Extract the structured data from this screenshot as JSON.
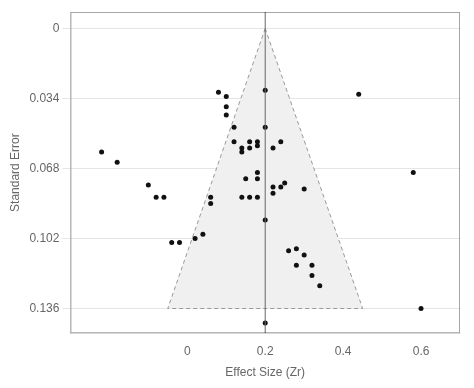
{
  "chart_data": {
    "type": "scatter",
    "xlabel": "Effect Size (Zr)",
    "ylabel": "Standard Error",
    "xlim": [
      -0.3,
      0.7
    ],
    "ylim": [
      0.148,
      -0.008
    ],
    "xticks": [
      0,
      0.2,
      0.4,
      0.6
    ],
    "yticks": [
      0,
      0.034,
      0.068,
      0.102,
      0.136
    ],
    "grid": true,
    "series": [
      {
        "type": "area",
        "color": "#f0f0f0",
        "x": [
          0.2,
          -0.05024,
          0.45024
        ],
        "values": [
          0,
          0.136,
          0.136
        ]
      },
      {
        "type": "line",
        "color": "#666666",
        "x": [
          0.2,
          0.2
        ],
        "values": [
          0.148,
          -0.008
        ]
      },
      {
        "type": "scatter",
        "color": "#111111",
        "x": [
          -0.22,
          -0.18,
          -0.1,
          -0.08,
          -0.06,
          -0.04,
          -0.02,
          0.02,
          0.04,
          0.06,
          0.06,
          0.08,
          0.1,
          0.1,
          0.1,
          0.12,
          0.12,
          0.14,
          0.14,
          0.14,
          0.15,
          0.16,
          0.16,
          0.16,
          0.18,
          0.18,
          0.18,
          0.18,
          0.18,
          0.2,
          0.2,
          0.2,
          0.22,
          0.22,
          0.22,
          0.24,
          0.24,
          0.25,
          0.26,
          0.28,
          0.28,
          0.3,
          0.3,
          0.32,
          0.32,
          0.34,
          0.2,
          0.44,
          0.58,
          0.6
        ],
        "values": [
          0.06,
          0.065,
          0.076,
          0.082,
          0.082,
          0.104,
          0.104,
          0.102,
          0.1,
          0.082,
          0.085,
          0.031,
          0.033,
          0.038,
          0.042,
          0.048,
          0.055,
          0.058,
          0.06,
          0.082,
          0.073,
          0.055,
          0.058,
          0.082,
          0.055,
          0.057,
          0.07,
          0.073,
          0.082,
          0.03,
          0.048,
          0.093,
          0.058,
          0.077,
          0.08,
          0.055,
          0.077,
          0.075,
          0.108,
          0.107,
          0.115,
          0.078,
          0.11,
          0.115,
          0.12,
          0.125,
          0.143,
          0.032,
          0.07,
          0.136
        ]
      }
    ]
  }
}
